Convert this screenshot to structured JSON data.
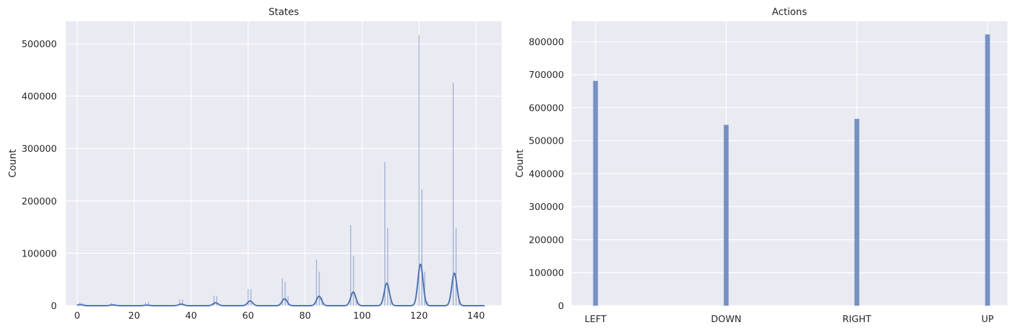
{
  "chart_data": [
    {
      "type": "histogram",
      "title": "States",
      "xlabel": "",
      "ylabel": "Count",
      "xlim": [
        -4,
        149
      ],
      "ylim": [
        0,
        543000
      ],
      "xticks": [
        0,
        20,
        40,
        60,
        80,
        100,
        120,
        140
      ],
      "yticks": [
        0,
        100000,
        200000,
        300000,
        400000,
        500000
      ],
      "ytick_labels": [
        "0",
        "100000",
        "200000",
        "300000",
        "400000",
        "500000"
      ],
      "grid": true,
      "bar_color": "#4c72b0",
      "bars": [
        {
          "x": 0,
          "y": 3000
        },
        {
          "x": 1,
          "y": 6000
        },
        {
          "x": 2,
          "y": 5000
        },
        {
          "x": 3,
          "y": 3000
        },
        {
          "x": 12,
          "y": 5000
        },
        {
          "x": 13,
          "y": 4000
        },
        {
          "x": 24,
          "y": 6000
        },
        {
          "x": 25,
          "y": 7000
        },
        {
          "x": 36,
          "y": 11000
        },
        {
          "x": 37,
          "y": 12000
        },
        {
          "x": 48,
          "y": 19000
        },
        {
          "x": 49,
          "y": 18000
        },
        {
          "x": 60,
          "y": 32000
        },
        {
          "x": 61,
          "y": 31000
        },
        {
          "x": 72,
          "y": 52000
        },
        {
          "x": 73,
          "y": 45000
        },
        {
          "x": 74,
          "y": 19000
        },
        {
          "x": 84,
          "y": 88000
        },
        {
          "x": 85,
          "y": 65000
        },
        {
          "x": 86,
          "y": 15000
        },
        {
          "x": 96,
          "y": 154000
        },
        {
          "x": 97,
          "y": 95000
        },
        {
          "x": 98,
          "y": 10000
        },
        {
          "x": 108,
          "y": 274000
        },
        {
          "x": 109,
          "y": 148000
        },
        {
          "x": 110,
          "y": 8000
        },
        {
          "x": 120,
          "y": 516000
        },
        {
          "x": 121,
          "y": 222000
        },
        {
          "x": 122,
          "y": 65000
        },
        {
          "x": 123,
          "y": 8000
        },
        {
          "x": 132,
          "y": 425000
        },
        {
          "x": 133,
          "y": 148000
        },
        {
          "x": 134,
          "y": 10000
        }
      ],
      "kde": {
        "bw": 0.9,
        "peaks": [
          {
            "center": 1.0,
            "height": 2000
          },
          {
            "center": 12.5,
            "height": 1500
          },
          {
            "center": 24.5,
            "height": 1000
          },
          {
            "center": 36.5,
            "height": 3000
          },
          {
            "center": 48.6,
            "height": 5500
          },
          {
            "center": 60.7,
            "height": 9000
          },
          {
            "center": 72.8,
            "height": 13000
          },
          {
            "center": 84.9,
            "height": 18000
          },
          {
            "center": 96.9,
            "height": 26000
          },
          {
            "center": 108.7,
            "height": 43000
          },
          {
            "center": 120.5,
            "height": 79000
          },
          {
            "center": 132.4,
            "height": 62000
          }
        ],
        "x_range": [
          0,
          143
        ]
      }
    },
    {
      "type": "bar",
      "title": "Actions",
      "xlabel": "",
      "ylabel": "Count",
      "categories": [
        "LEFT",
        "DOWN",
        "RIGHT",
        "UP"
      ],
      "values": [
        681000,
        548000,
        566000,
        822000
      ],
      "ylim": [
        0,
        862000
      ],
      "yticks": [
        0,
        100000,
        200000,
        300000,
        400000,
        500000,
        600000,
        700000,
        800000
      ],
      "ytick_labels": [
        "0",
        "100000",
        "200000",
        "300000",
        "400000",
        "500000",
        "600000",
        "700000",
        "800000"
      ],
      "grid": true,
      "bar_color": "#4c72b0"
    }
  ]
}
